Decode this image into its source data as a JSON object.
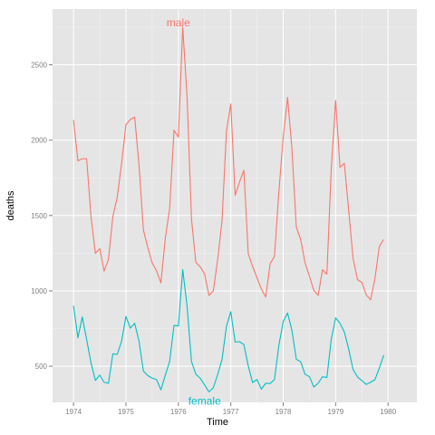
{
  "chart_data": {
    "type": "line",
    "title": "",
    "xlabel": "Time",
    "ylabel": "deaths",
    "xlim": [
      1973.6,
      1980.55
    ],
    "ylim": [
      260,
      2870
    ],
    "x_ticks": [
      1974,
      1975,
      1976,
      1977,
      1978,
      1979,
      1980
    ],
    "x_tick_labels": [
      "1974",
      "1975",
      "1976",
      "1977",
      "1978",
      "1979",
      "1980"
    ],
    "y_ticks": [
      500,
      1000,
      1500,
      2000,
      2500
    ],
    "y_tick_labels": [
      "500",
      "1000",
      "1500",
      "2000",
      "2500"
    ],
    "grid": true,
    "legend": "none",
    "x_start": 1974.0,
    "x_step": 0.083333,
    "series": [
      {
        "name": "male",
        "color": "#F8766D",
        "label_at": [
          1976.0,
          2780
        ],
        "values": [
          2134,
          1863,
          1877,
          1877,
          1492,
          1249,
          1280,
          1131,
          1209,
          1492,
          1621,
          1846,
          2103,
          2137,
          2153,
          1833,
          1403,
          1288,
          1186,
          1133,
          1053,
          1347,
          1545,
          2066,
          2020,
          2750,
          2283,
          1479,
          1189,
          1160,
          1113,
          970,
          999,
          1208,
          1467,
          2059,
          2240,
          1634,
          1722,
          1801,
          1246,
          1162,
          1087,
          1013,
          959,
          1179,
          1229,
          1655,
          2019,
          2284,
          1942,
          1423,
          1340,
          1187,
          1098,
          1004,
          970,
          1140,
          1110,
          1812,
          2263,
          1820,
          1846,
          1531,
          1215,
          1075,
          1056,
          975,
          940,
          1081,
          1294,
          1341
        ]
      },
      {
        "name": "female",
        "color": "#00BFC4",
        "label_at": [
          1976.5,
          270
        ],
        "values": [
          901,
          689,
          827,
          677,
          522,
          406,
          441,
          393,
          387,
          582,
          578,
          666,
          830,
          752,
          785,
          664,
          467,
          438,
          421,
          412,
          343,
          440,
          531,
          771,
          767,
          1141,
          896,
          532,
          447,
          420,
          376,
          330,
          357,
          445,
          546,
          764,
          862,
          660,
          663,
          643,
          502,
          392,
          411,
          348,
          387,
          385,
          411,
          638,
          796,
          853,
          737,
          546,
          530,
          446,
          431,
          362,
          387,
          430,
          425,
          679,
          821,
          785,
          727,
          612,
          478,
          429,
          405,
          379,
          393,
          411,
          487,
          574
        ]
      }
    ]
  }
}
